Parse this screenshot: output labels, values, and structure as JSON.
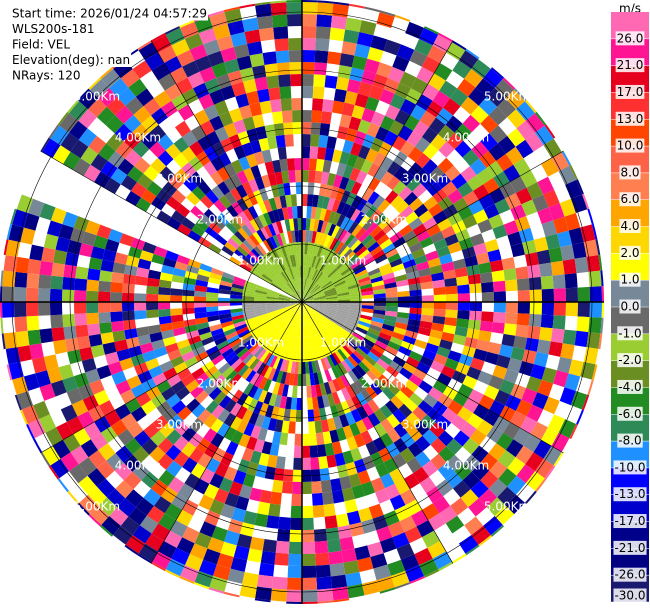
{
  "chart_data": {
    "type": "ppi",
    "header": [
      "Start time: 2026/01/24 04:57:29",
      "WLS200s-181",
      "Field: VEL",
      "Elevation(deg): nan",
      "NRays: 120"
    ],
    "range_rings": [
      {
        "value": 1,
        "label": "1.00Km"
      },
      {
        "value": 2,
        "label": "2.00Km"
      },
      {
        "value": 3,
        "label": "3.00Km"
      },
      {
        "value": 4,
        "label": "4.00Km"
      },
      {
        "value": 5,
        "label": "5.00Km"
      }
    ],
    "colorbar": {
      "label": "m/s",
      "clim": [
        -30,
        30
      ],
      "ticks": [
        {
          "value": 26,
          "label": "26.0"
        },
        {
          "value": 21,
          "label": "21.0"
        },
        {
          "value": 17,
          "label": "17.0"
        },
        {
          "value": 13,
          "label": "13.0"
        },
        {
          "value": 10,
          "label": "10.0"
        },
        {
          "value": 8,
          "label": "8.0"
        },
        {
          "value": 6,
          "label": "6.0"
        },
        {
          "value": 4,
          "label": "4.0"
        },
        {
          "value": 2,
          "label": "2.0"
        },
        {
          "value": 1,
          "label": "1.0"
        },
        {
          "value": 0,
          "label": "0.0"
        },
        {
          "value": -1,
          "label": "-1.0"
        },
        {
          "value": -2,
          "label": "-2.0"
        },
        {
          "value": -4,
          "label": "-4.0"
        },
        {
          "value": -6,
          "label": "-6.0"
        },
        {
          "value": -8,
          "label": "-8.0"
        },
        {
          "value": -10,
          "label": "-10.0"
        },
        {
          "value": -13,
          "label": "-13.0"
        },
        {
          "value": -17,
          "label": "-17.0"
        },
        {
          "value": -21,
          "label": "-21.0"
        },
        {
          "value": -26,
          "label": "-26.0"
        },
        {
          "value": -30,
          "label": "-30.0"
        }
      ],
      "colors": [
        "#ff69b4",
        "#ff1493",
        "#e6001e",
        "#ff3030",
        "#ff4500",
        "#ff6347",
        "#ff7f50",
        "#ffa500",
        "#ffd700",
        "#ffff00",
        "#778899",
        "#696969",
        "#9acd32",
        "#6b8e23",
        "#228b22",
        "#2e8b57",
        "#1e90ff",
        "#0000ff",
        "#0000cd",
        "#00008b",
        "#000080",
        "#191970"
      ]
    }
  }
}
